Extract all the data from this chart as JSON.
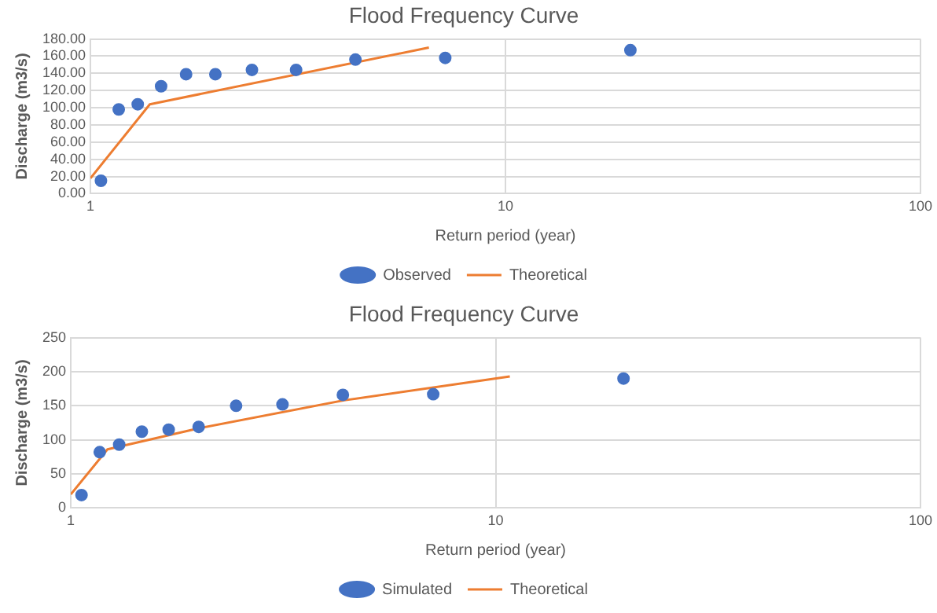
{
  "chart_data": [
    {
      "type": "scatter",
      "title": "Flood Frequency Curve",
      "xlabel": "Return period (year)",
      "ylabel": "Discharge (m3/s)",
      "log": "x",
      "grid": true,
      "legend": "bottom",
      "xlim": [
        1,
        100
      ],
      "xticks": [
        1,
        10,
        100
      ],
      "ylim": [
        0,
        180
      ],
      "yticks": [
        {
          "value": 0,
          "label": "0.00"
        },
        {
          "value": 20,
          "label": "20.00"
        },
        {
          "value": 40,
          "label": "40.00"
        },
        {
          "value": 60,
          "label": "60.00"
        },
        {
          "value": 80,
          "label": "80.00"
        },
        {
          "value": 100,
          "label": "100.00"
        },
        {
          "value": 120,
          "label": "120.00"
        },
        {
          "value": 140,
          "label": "140.00"
        },
        {
          "value": 160,
          "label": "160.00"
        },
        {
          "value": 180,
          "label": "180.00"
        }
      ],
      "series": [
        {
          "name": "Observed",
          "marker": "circle",
          "color": "#4472c4",
          "x": [
            1.06,
            1.17,
            1.3,
            1.48,
            1.7,
            2.0,
            2.45,
            3.13,
            4.35,
            7.16,
            20.0
          ],
          "values": [
            15,
            98,
            104,
            125,
            139,
            139,
            144,
            144,
            156,
            158,
            167
          ]
        },
        {
          "name": "Theoretical",
          "type": "line",
          "marker": "none",
          "color": "#ed7d31",
          "x": [
            1,
            1.39,
            6.54
          ],
          "values": [
            18,
            104,
            170
          ]
        }
      ]
    },
    {
      "type": "scatter",
      "title": "Flood Frequency Curve",
      "xlabel": "Return period (year)",
      "ylabel": "Discharge (m3/s)",
      "log": "x",
      "grid": true,
      "legend": "bottom",
      "xlim": [
        1,
        100
      ],
      "xticks": [
        1,
        10,
        100
      ],
      "ylim": [
        0,
        250
      ],
      "yticks": [
        0,
        50,
        100,
        150,
        200,
        250
      ],
      "series": [
        {
          "name": "Simulated",
          "marker": "circle",
          "color": "#4472c4",
          "x": [
            1.06,
            1.17,
            1.3,
            1.47,
            1.7,
            2.0,
            2.45,
            3.15,
            4.37,
            7.13,
            20.0
          ],
          "values": [
            19,
            82,
            93,
            112,
            115,
            119,
            150,
            152,
            166,
            167,
            190
          ]
        },
        {
          "name": "Theoretical",
          "type": "line",
          "marker": "none",
          "color": "#ed7d31",
          "x": [
            1,
            1.22,
            2.0,
            4.4,
            10.8
          ],
          "values": [
            20,
            86,
            117,
            158,
            193
          ]
        }
      ]
    }
  ]
}
